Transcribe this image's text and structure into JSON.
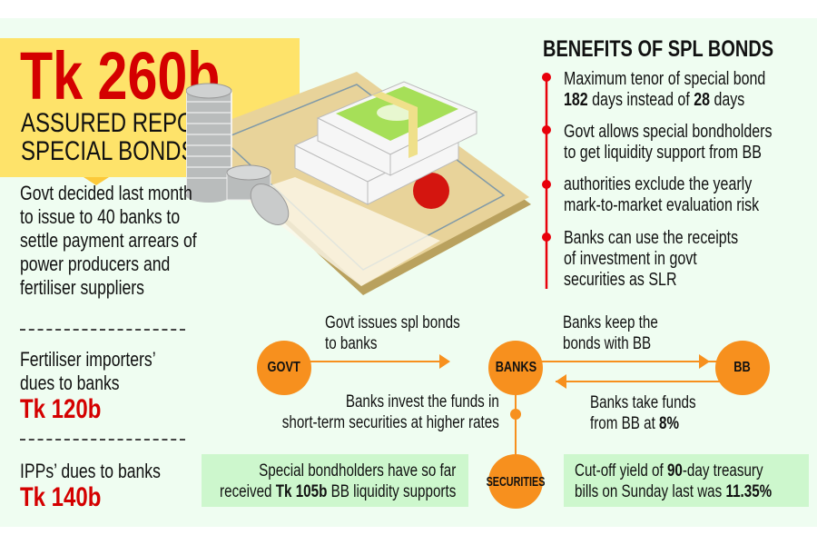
{
  "headline": {
    "amount": "Tk 260b",
    "subtitle_line1": "ASSURED REPO",
    "subtitle_line2": "SPECIAL BONDS"
  },
  "intro": {
    "lines": [
      "Govt decided last month",
      "to issue to 40 banks to",
      "settle payment arrears of",
      "power producers and",
      "fertiliser suppliers"
    ]
  },
  "dues": [
    {
      "label_lines": [
        "Fertiliser importers’",
        "dues to banks"
      ],
      "amount": "Tk 120b"
    },
    {
      "label_lines": [
        "IPPs’ dues to banks"
      ],
      "amount": "Tk 140b"
    }
  ],
  "benefits": {
    "title": "BENEFITS OF SPL BONDS",
    "items": [
      {
        "l1": "Maximum tenor of special bond",
        "l2_b1": "182",
        "l2_t1": " days instead of ",
        "l2_b2": "28",
        "l2_t2": " days"
      },
      {
        "l1": "Govt allows special bondholders",
        "l2": "to get liquidity support from BB"
      },
      {
        "l1": "authorities exclude the yearly",
        "l2": "mark-to-market evaluation risk"
      },
      {
        "l1": "Banks can use the receipts",
        "l2": "of investment in govt",
        "l3": "securities as SLR"
      }
    ]
  },
  "flow": {
    "nodes": {
      "govt": "GOVT",
      "banks": "BANKS",
      "bb": "BB",
      "securities": "SECURITIES"
    },
    "govt_to_banks": [
      "Govt issues spl bonds",
      "to banks"
    ],
    "banks_to_bb": [
      "Banks keep the",
      "bonds with BB"
    ],
    "bb_to_banks": {
      "l1": "Banks take funds",
      "l2": "from BB at ",
      "rate": "8%"
    },
    "banks_to_securities": [
      "Banks invest the funds in",
      "short-term securities at higher rates"
    ]
  },
  "notes": {
    "left": {
      "l1": "Special bondholders have so far",
      "l2a": "received ",
      "l2b": "Tk 105b",
      "l2c": " BB liquidity supports"
    },
    "right": {
      "l1a": "Cut-off yield of ",
      "l1b": "90",
      "l1c": "-day treasury",
      "l2a": "bills on Sunday last was ",
      "l2b": "11.35%"
    }
  },
  "colors": {
    "headline_red": "#d40000",
    "yellow": "#fee36a",
    "orange": "#f7901e",
    "green_box": "#cdf7cd",
    "timeline_red": "#e8000b",
    "background": "#effdf1"
  },
  "illustration": "certificate-with-coins-and-money-icon"
}
